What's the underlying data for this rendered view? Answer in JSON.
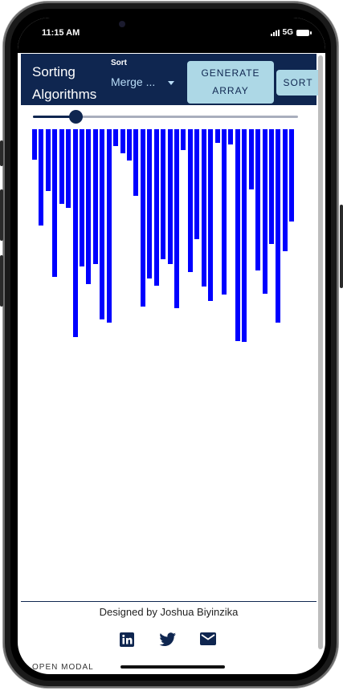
{
  "status": {
    "time": "11:15 AM",
    "network": "5G"
  },
  "appbar": {
    "title": "Sorting Algorithms",
    "sort_label": "Sort",
    "sort_value": "Merge ...",
    "generate_label": "GENERATE ARRAY",
    "sort_button_label": "SORT"
  },
  "slider": {
    "value_fraction": 0.16
  },
  "chart_data": {
    "type": "bar",
    "values": [
      38,
      120,
      77,
      184,
      93,
      98,
      259,
      171,
      193,
      168,
      237,
      241,
      21,
      30,
      39,
      83,
      221,
      186,
      195,
      162,
      168,
      223,
      26,
      178,
      137,
      196,
      214,
      17,
      206,
      19,
      264,
      265,
      75,
      176,
      205,
      143,
      241,
      152,
      115
    ]
  },
  "footer": {
    "credit": "Designed by Joshua Biyinzika",
    "cut_text": "OPEN MODAL"
  },
  "icons": {
    "linkedin": "linkedin-icon",
    "twitter": "twitter-icon",
    "mail": "mail-icon"
  },
  "colors": {
    "appbar": "#0f2650",
    "bars": "#0000ff",
    "button": "#add8e6"
  }
}
